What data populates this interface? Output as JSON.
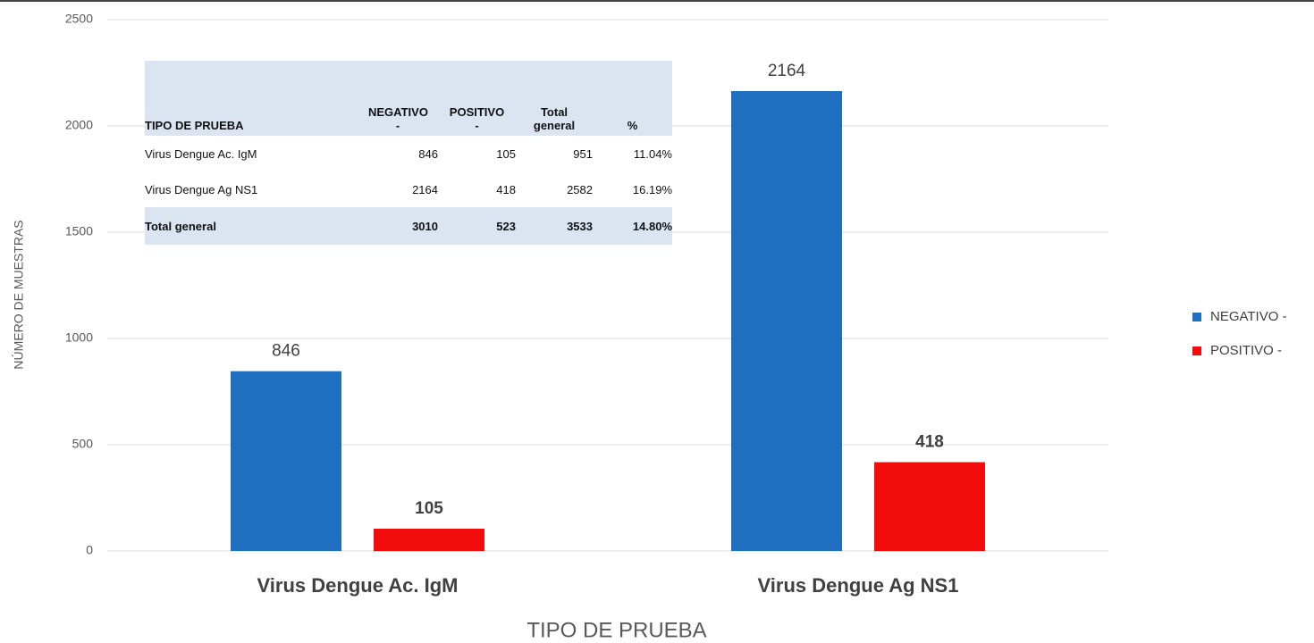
{
  "chart_data": {
    "type": "bar",
    "x_label": "TIPO DE PRUEBA",
    "y_label": "NÚMERO DE MUESTRAS",
    "categories": [
      "Virus Dengue Ac. IgM",
      "Virus Dengue Ag NS1"
    ],
    "series": [
      {
        "name": "NEGATIVO -",
        "color": "#1f6fc1",
        "values": [
          846,
          2164
        ]
      },
      {
        "name": "POSITIVO -",
        "color": "#f20d0d",
        "values": [
          105,
          418
        ]
      }
    ],
    "ylim": [
      0,
      2500
    ],
    "yticks": [
      0,
      500,
      1000,
      1500,
      2000,
      2500
    ],
    "grid": true,
    "legend": "right"
  },
  "table": {
    "header": [
      "TIPO DE PRUEBA",
      "NEGATIVO -",
      "POSITIVO -",
      "Total general",
      "%"
    ],
    "rows": [
      [
        "Virus Dengue Ac. IgM",
        846,
        105,
        951,
        "11.04%"
      ],
      [
        "Virus Dengue Ag NS1",
        2164,
        418,
        2582,
        "16.19%"
      ],
      [
        "Total general",
        3010,
        523,
        3533,
        "14.80%"
      ]
    ]
  }
}
